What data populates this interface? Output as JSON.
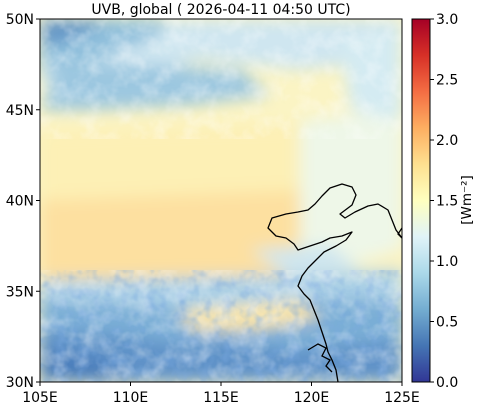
{
  "title": "UVB, global ( 2026-04-11 04:50 UTC)",
  "map": {
    "x_ticks": [
      "105E",
      "110E",
      "115E",
      "120E",
      "125E"
    ],
    "y_ticks": [
      "50N",
      "45N",
      "40N",
      "35N",
      "30N"
    ],
    "lon_range": [
      105,
      125
    ],
    "lat_range": [
      30,
      50
    ],
    "coastline_color": "#000000"
  },
  "colorbar": {
    "label": "[Wm⁻²]",
    "ticks": [
      "3.0",
      "2.5",
      "2.0",
      "1.5",
      "1.0",
      "0.5",
      "0.0"
    ],
    "range": [
      0.0,
      3.0
    ],
    "colormap": "RdYlBu_r",
    "colors": [
      "#313695",
      "#4575b4",
      "#74add1",
      "#abd9e9",
      "#e0f3f8",
      "#ffffbf",
      "#fee090",
      "#fdae61",
      "#f46d43",
      "#d73027",
      "#a50026"
    ]
  }
}
